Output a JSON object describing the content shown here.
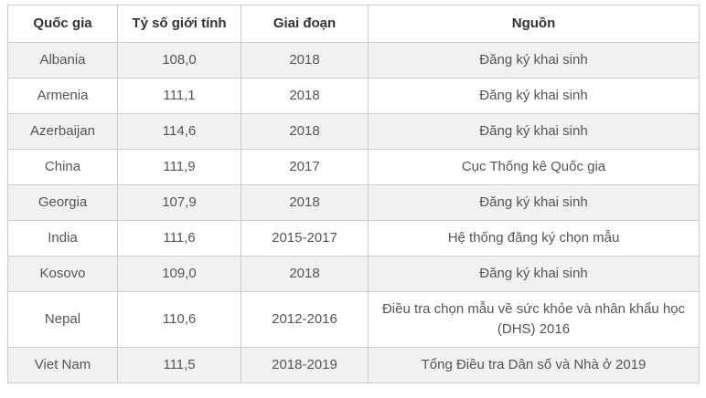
{
  "chart_data": {
    "type": "table",
    "title": "",
    "columns": [
      "Quốc gia",
      "Tỷ số giới tính",
      "Giai đoạn",
      "Nguồn"
    ],
    "rows": [
      [
        "Albania",
        "108,0",
        "2018",
        "Đăng ký khai sinh"
      ],
      [
        "Armenia",
        "111,1",
        "2018",
        "Đăng ký khai sinh"
      ],
      [
        "Azerbaijan",
        "114,6",
        "2018",
        "Đăng ký khai sinh"
      ],
      [
        "China",
        "111,9",
        "2017",
        "Cục Thống kê Quốc gia"
      ],
      [
        "Georgia",
        "107,9",
        "2018",
        "Đăng ký khai sinh"
      ],
      [
        "India",
        "111,6",
        "2015-2017",
        "Hệ thống đăng ký chọn mẫu"
      ],
      [
        "Kosovo",
        "109,0",
        "2018",
        "Đăng ký khai sinh"
      ],
      [
        "Nepal",
        "110,6",
        "2012-2016",
        "Điều tra chọn mẫu về sức khỏe và nhân khẩu học (DHS) 2016"
      ],
      [
        "Viet Nam",
        "111,5",
        "2018-2019",
        "Tổng Điều tra Dân số và Nhà ở 2019"
      ]
    ]
  },
  "colors": {
    "border": "#cccccc",
    "stripe_row_background": "#f1f1f1",
    "header_text": "#333333",
    "body_text": "#555555",
    "background": "#ffffff"
  }
}
